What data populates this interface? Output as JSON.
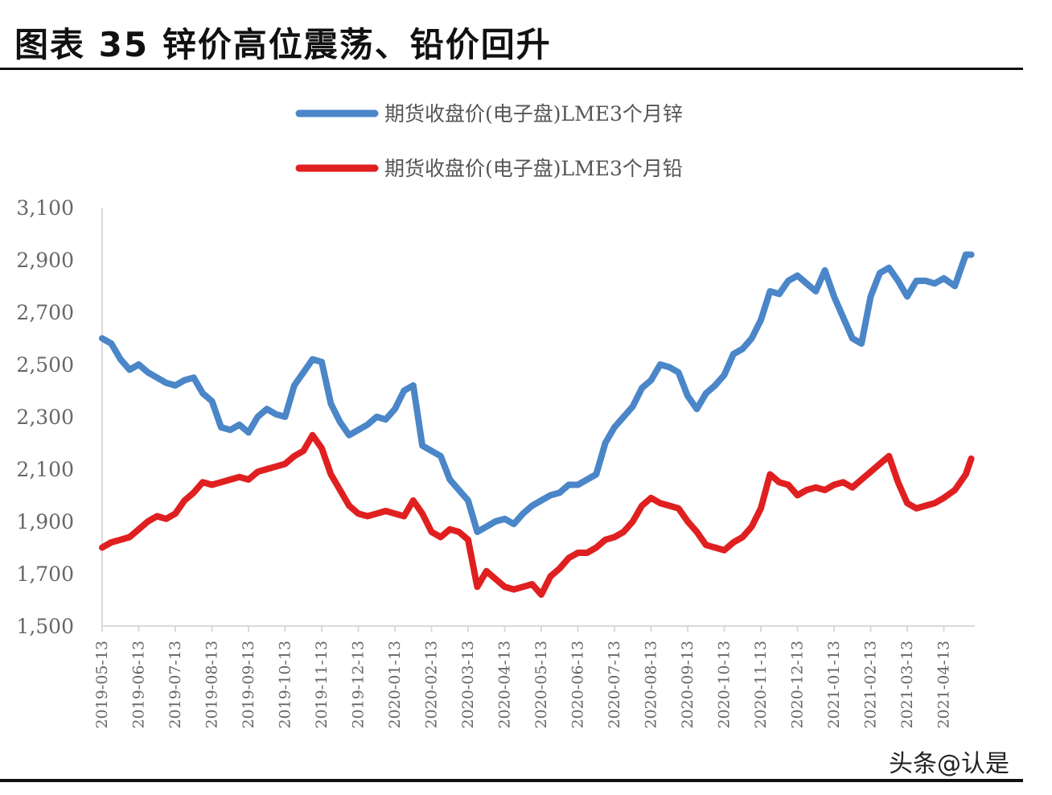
{
  "figure": {
    "title": "图表 35 锌价高位震荡、铅价回升",
    "watermark": "头条@认是"
  },
  "chart_data": {
    "type": "line",
    "title": "图表 35 锌价高位震荡、铅价回升",
    "ylim": [
      1500,
      3100
    ],
    "yticks": [
      "1,500",
      "1,700",
      "1,900",
      "2,100",
      "2,300",
      "2,500",
      "2,700",
      "2,900",
      "3,100"
    ],
    "categories": [
      "2019-05-13",
      "2019-06-13",
      "2019-07-13",
      "2019-08-13",
      "2019-09-13",
      "2019-10-13",
      "2019-11-13",
      "2019-12-13",
      "2020-01-13",
      "2020-02-13",
      "2020-03-13",
      "2020-04-13",
      "2020-05-13",
      "2020-06-13",
      "2020-07-13",
      "2020-08-13",
      "2020-09-13",
      "2020-10-13",
      "2020-11-13",
      "2020-12-13",
      "2021-01-13",
      "2021-02-13",
      "2021-03-13",
      "2021-04-13"
    ],
    "legend_position": "top-center",
    "grid": false,
    "series": [
      {
        "name": "期货收盘价(电子盘)LME3个月锌",
        "color": "#4a86c8",
        "x": [
          0,
          0.25,
          0.5,
          0.75,
          1,
          1.25,
          1.5,
          1.75,
          2,
          2.25,
          2.5,
          2.75,
          3,
          3.25,
          3.5,
          3.75,
          4,
          4.25,
          4.5,
          4.75,
          5,
          5.25,
          5.5,
          5.75,
          6,
          6.25,
          6.5,
          6.75,
          7,
          7.25,
          7.5,
          7.75,
          8,
          8.25,
          8.5,
          8.75,
          9,
          9.25,
          9.5,
          9.75,
          10,
          10.25,
          10.5,
          10.75,
          11,
          11.25,
          11.5,
          11.75,
          12,
          12.25,
          12.5,
          12.75,
          13,
          13.25,
          13.5,
          13.75,
          14,
          14.25,
          14.5,
          14.75,
          15,
          15.25,
          15.5,
          15.75,
          16,
          16.25,
          16.5,
          16.75,
          17,
          17.25,
          17.5,
          17.75,
          18,
          18.25,
          18.5,
          18.75,
          19,
          19.25,
          19.5,
          19.75,
          20,
          20.25,
          20.5,
          20.75,
          21,
          21.25,
          21.5,
          21.75,
          22,
          22.25,
          22.5,
          22.75,
          23,
          23.3,
          23.6,
          23.75
        ],
        "values": [
          2600,
          2580,
          2520,
          2480,
          2500,
          2470,
          2450,
          2430,
          2420,
          2440,
          2450,
          2390,
          2360,
          2260,
          2250,
          2270,
          2240,
          2300,
          2330,
          2310,
          2300,
          2420,
          2470,
          2520,
          2510,
          2350,
          2280,
          2230,
          2250,
          2270,
          2300,
          2290,
          2330,
          2400,
          2420,
          2190,
          2170,
          2150,
          2060,
          2020,
          1980,
          1860,
          1880,
          1900,
          1910,
          1890,
          1930,
          1960,
          1980,
          2000,
          2010,
          2040,
          2040,
          2060,
          2080,
          2200,
          2260,
          2300,
          2340,
          2410,
          2440,
          2500,
          2490,
          2470,
          2380,
          2330,
          2390,
          2420,
          2460,
          2540,
          2560,
          2600,
          2670,
          2780,
          2770,
          2820,
          2840,
          2810,
          2780,
          2860,
          2760,
          2680,
          2600,
          2580,
          2760,
          2850,
          2870,
          2820,
          2760,
          2820,
          2820,
          2810,
          2830,
          2800,
          2920,
          2920
        ]
      },
      {
        "name": "期货收盘价(电子盘)LME3个月铅",
        "color": "#e02020",
        "x": [
          0,
          0.25,
          0.5,
          0.75,
          1,
          1.25,
          1.5,
          1.75,
          2,
          2.25,
          2.5,
          2.75,
          3,
          3.25,
          3.5,
          3.75,
          4,
          4.25,
          4.5,
          4.75,
          5,
          5.25,
          5.5,
          5.75,
          6,
          6.25,
          6.5,
          6.75,
          7,
          7.25,
          7.5,
          7.75,
          8,
          8.25,
          8.5,
          8.75,
          9,
          9.25,
          9.5,
          9.75,
          10,
          10.25,
          10.5,
          10.75,
          11,
          11.25,
          11.5,
          11.75,
          12,
          12.25,
          12.5,
          12.75,
          13,
          13.25,
          13.5,
          13.75,
          14,
          14.25,
          14.5,
          14.75,
          15,
          15.25,
          15.5,
          15.75,
          16,
          16.25,
          16.5,
          16.75,
          17,
          17.25,
          17.5,
          17.75,
          18,
          18.25,
          18.5,
          18.75,
          19,
          19.25,
          19.5,
          19.75,
          20,
          20.25,
          20.5,
          20.75,
          21,
          21.25,
          21.5,
          21.75,
          22,
          22.25,
          22.5,
          22.75,
          23,
          23.3,
          23.6,
          23.75
        ],
        "values": [
          1800,
          1820,
          1830,
          1840,
          1870,
          1900,
          1920,
          1910,
          1930,
          1980,
          2010,
          2050,
          2040,
          2050,
          2060,
          2070,
          2060,
          2090,
          2100,
          2110,
          2120,
          2150,
          2170,
          2230,
          2180,
          2080,
          2020,
          1960,
          1930,
          1920,
          1930,
          1940,
          1930,
          1920,
          1980,
          1930,
          1860,
          1840,
          1870,
          1860,
          1830,
          1650,
          1710,
          1680,
          1650,
          1640,
          1650,
          1660,
          1620,
          1690,
          1720,
          1760,
          1780,
          1780,
          1800,
          1830,
          1840,
          1860,
          1900,
          1960,
          1990,
          1970,
          1960,
          1950,
          1900,
          1860,
          1810,
          1800,
          1790,
          1820,
          1840,
          1880,
          1950,
          2080,
          2050,
          2040,
          2000,
          2020,
          2030,
          2020,
          2040,
          2050,
          2030,
          2060,
          2090,
          2120,
          2150,
          2050,
          1970,
          1950,
          1960,
          1970,
          1990,
          2020,
          2080,
          2140
        ]
      }
    ]
  }
}
